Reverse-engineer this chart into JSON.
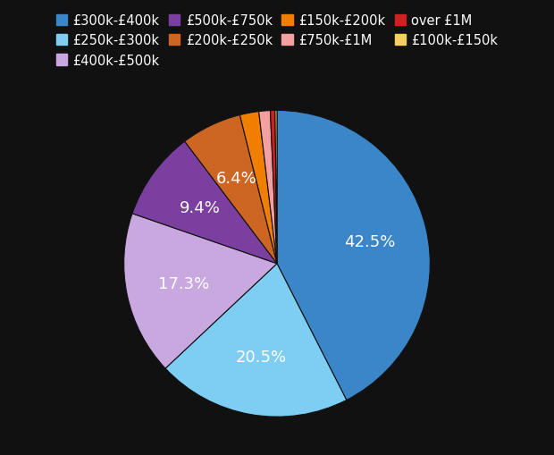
{
  "labels": [
    "£300k-£400k",
    "£250k-£300k",
    "£400k-£500k",
    "£500k-£750k",
    "£200k-£250k",
    "£150k-£200k",
    "£750k-£1M",
    "over £1M",
    "£100k-£150k"
  ],
  "values": [
    42.5,
    20.5,
    17.3,
    9.4,
    6.4,
    2.0,
    1.2,
    0.5,
    0.2
  ],
  "colors": [
    "#3a86c8",
    "#7ecef4",
    "#c9a8e0",
    "#7b3fa0",
    "#cc6622",
    "#f07f00",
    "#f4a0a0",
    "#cc2222",
    "#f5d060"
  ],
  "background_color": "#111111",
  "text_color": "#ffffff",
  "label_fontsize": 13,
  "legend_fontsize": 10.5
}
